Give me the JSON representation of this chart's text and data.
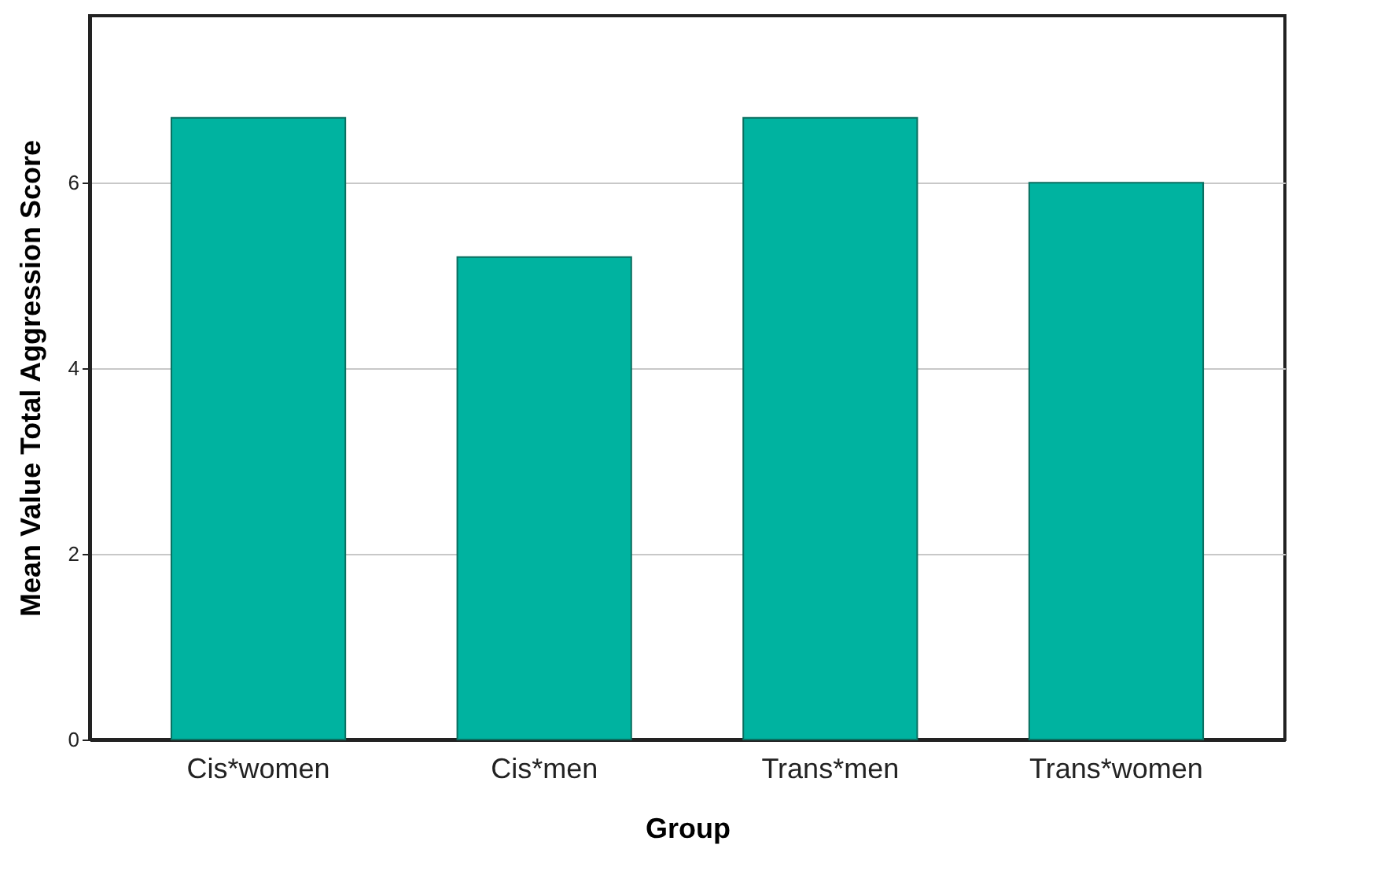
{
  "chart_data": {
    "type": "bar",
    "xlabel": "Group",
    "ylabel": "Mean Value Total Aggression Score",
    "categories": [
      "Cis*women",
      "Cis*men",
      "Trans*men",
      "Trans*women"
    ],
    "values": [
      6.7,
      5.2,
      6.7,
      6.0
    ],
    "color": "#00b3a0",
    "ylim": [
      0,
      7.8
    ],
    "yticks": [
      0,
      2,
      4,
      6
    ],
    "grid": "y"
  }
}
